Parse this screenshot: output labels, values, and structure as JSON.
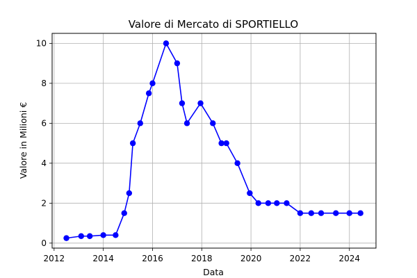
{
  "chart_data": {
    "type": "line",
    "title": "Valore di Mercato di SPORTIELLO",
    "xlabel": "Data",
    "ylabel": "Valore in Milioni €",
    "xlim": [
      2011.92,
      2025.08
    ],
    "ylim": [
      -0.25,
      10.5
    ],
    "x_ticks": [
      2012,
      2014,
      2016,
      2018,
      2020,
      2022,
      2024
    ],
    "y_ticks": [
      0,
      2,
      4,
      6,
      8,
      10
    ],
    "grid": true,
    "legend": "none",
    "color": "#0000ff",
    "series": [
      {
        "x": [
          2012.5,
          2013.1,
          2013.45,
          2014.0,
          2014.5,
          2014.85,
          2015.05,
          2015.2,
          2015.5,
          2015.85,
          2016.0,
          2016.55,
          2017.0,
          2017.2,
          2017.4,
          2017.95,
          2018.45,
          2018.8,
          2019.0,
          2019.45,
          2019.95,
          2020.3,
          2020.7,
          2021.05,
          2021.45,
          2022.0,
          2022.45,
          2022.85,
          2023.45,
          2024.0,
          2024.45
        ],
        "y": [
          0.25,
          0.35,
          0.35,
          0.4,
          0.4,
          1.5,
          2.5,
          5.0,
          6.0,
          7.5,
          8.0,
          10.0,
          9.0,
          7.0,
          6.0,
          7.0,
          6.0,
          5.0,
          5.0,
          4.0,
          2.5,
          2.0,
          2.0,
          2.0,
          2.0,
          1.5,
          1.5,
          1.5,
          1.5,
          1.5,
          1.5
        ]
      }
    ]
  }
}
